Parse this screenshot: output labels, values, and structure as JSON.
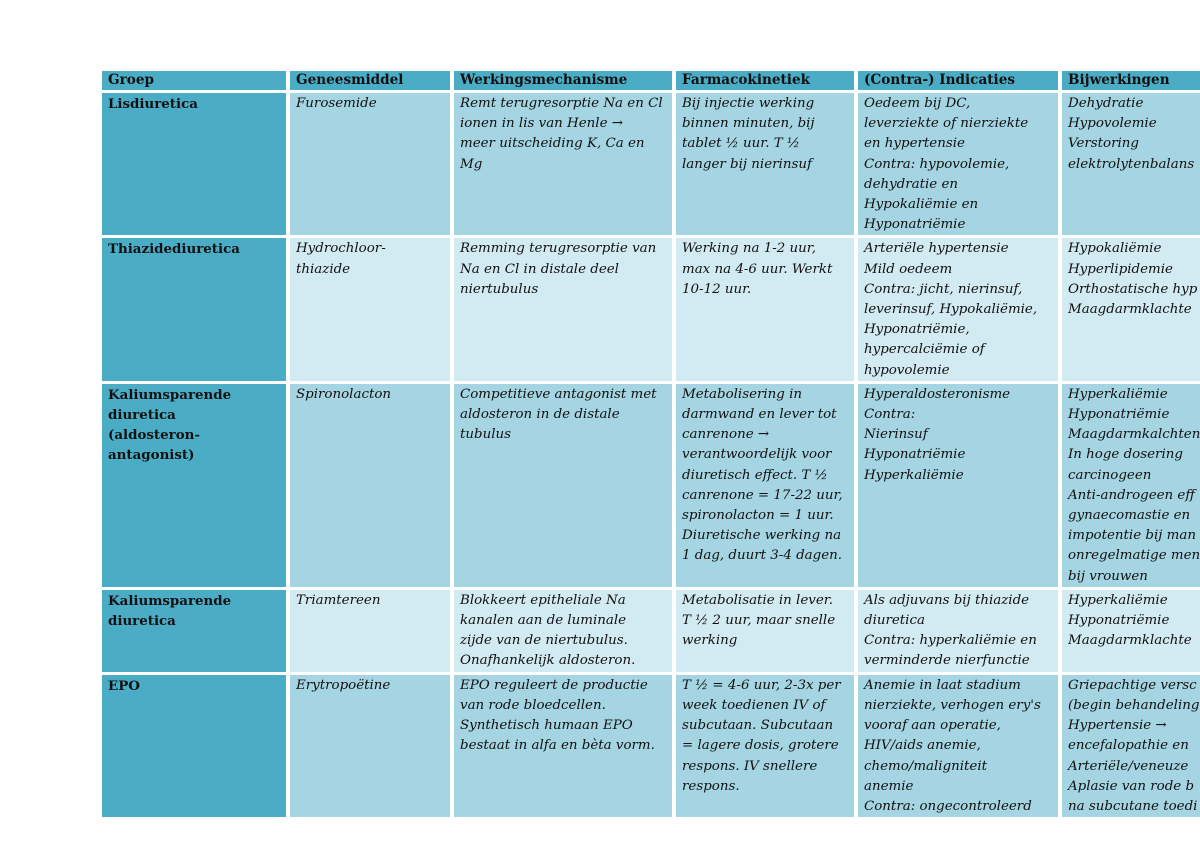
{
  "table": {
    "headers": [
      "Groep",
      "Geneesmiddel",
      "Werkingsmechanisme",
      "Farmacokinetiek",
      "(Contra-) Indicaties",
      "Bijwerkingen"
    ],
    "rows": [
      {
        "group": [
          "Lisdiuretica"
        ],
        "drug": [
          "Furosemide"
        ],
        "mechanism": [
          "Remt terugresorptie Na en Cl",
          "ionen in lis van Henle →",
          "meer uitscheiding K, Ca en",
          "Mg"
        ],
        "pharmacokinetics": [
          "Bij injectie werking",
          "binnen minuten, bij",
          "tablet ½ uur. T ½",
          "langer bij nierinsuf"
        ],
        "indications": [
          "Oedeem bij DC,",
          "leverziekte of nierziekte",
          "en hypertensie",
          "Contra: hypovolemie,",
          "dehydratie en",
          "Hypokaliëmie en",
          "Hyponatriëmie"
        ],
        "side_effects": [
          "Dehydratie",
          "Hypovolemie",
          "Verstoring",
          "elektrolytenbalans"
        ]
      },
      {
        "group": [
          "Thiazidediuretica"
        ],
        "drug": [
          "Hydrochloor-",
          "thiazide"
        ],
        "mechanism": [
          "Remming terugresorptie van",
          "Na en Cl in distale deel",
          "niertubulus"
        ],
        "pharmacokinetics": [
          "Werking na 1-2 uur,",
          "max na 4-6 uur. Werkt",
          "10-12 uur."
        ],
        "indications": [
          "Arteriële hypertensie",
          "Mild oedeem",
          "Contra: jicht, nierinsuf,",
          "leverinsuf, Hypokaliëmie,",
          "Hyponatriëmie,",
          "hypercalciëmie of",
          "hypovolemie"
        ],
        "side_effects": [
          "Hypokaliëmie",
          "Hyperlipidemie",
          "Orthostatische hyp",
          "Maagdarmklachte"
        ]
      },
      {
        "group": [
          "Kaliumsparende",
          "diuretica",
          "(aldosteron-",
          "antagonist)"
        ],
        "drug": [
          "Spironolacton"
        ],
        "mechanism": [
          "Competitieve antagonist met",
          "aldosteron in de distale",
          "tubulus"
        ],
        "pharmacokinetics": [
          "Metabolisering in",
          "darmwand en lever tot",
          "canrenone →",
          "verantwoordelijk voor",
          "diuretisch effect. T ½",
          "canrenone = 17-22 uur,",
          "spironolacton = 1 uur.",
          "Diuretische werking na",
          "1 dag, duurt 3-4 dagen."
        ],
        "indications": [
          "Hyperaldosteronisme",
          "Contra:",
          "Nierinsuf",
          "Hyponatriëmie",
          "Hyperkaliëmie"
        ],
        "side_effects": [
          "Hyperkaliëmie",
          "Hyponatriëmie",
          "Maagdarmkalchten",
          "In hoge dosering",
          "carcinogeen",
          "Anti-androgeen eff",
          "gynaecomastie en",
          "impotentie bij man",
          "onregelmatige men",
          "bij vrouwen"
        ]
      },
      {
        "group": [
          "Kaliumsparende",
          "diuretica"
        ],
        "drug": [
          "Triamtereen"
        ],
        "mechanism": [
          "Blokkeert epitheliale Na",
          "kanalen aan de luminale",
          "zijde van de niertubulus.",
          "Onafhankelijk aldosteron."
        ],
        "pharmacokinetics": [
          "Metabolisatie in lever.",
          "T ½ 2 uur, maar snelle",
          "werking"
        ],
        "indications": [
          "Als adjuvans bij thiazide",
          "diuretica",
          "Contra: hyperkaliëmie en",
          "verminderde nierfunctie"
        ],
        "side_effects": [
          "Hyperkaliëmie",
          "Hyponatriëmie",
          "Maagdarmklachte"
        ]
      },
      {
        "group": [
          "EPO"
        ],
        "drug": [
          "Erytropoëtine"
        ],
        "mechanism": [
          "EPO reguleert de productie",
          "van rode bloedcellen.",
          "Synthetisch humaan EPO",
          "bestaat in alfa en bèta vorm."
        ],
        "pharmacokinetics": [
          "T ½ = 4-6 uur, 2-3x per",
          "week toedienen IV of",
          "subcutaan. Subcutaan",
          "= lagere dosis, grotere",
          "respons. IV snellere",
          "respons."
        ],
        "indications": [
          "Anemie in laat stadium",
          "nierziekte, verhogen ery's",
          "vooraf aan operatie,",
          "HIV/aids anemie,",
          "chemo/maligniteit",
          "anemie",
          "Contra: ongecontroleerd"
        ],
        "side_effects": [
          "Griepachtige versc",
          "(begin behandeling",
          "Hypertensie →",
          "encefalopathie en ",
          "Arteriële/veneuze ",
          "Aplasie van rode b",
          "na subcutane toedi"
        ]
      }
    ]
  },
  "colors": {
    "header_bg": "#4bacc6",
    "group_bg": "#4bacc6",
    "odd_row_bg": "#a5d5e2",
    "even_row_bg": "#d2eaf1",
    "page_bg": "#ffffff"
  }
}
